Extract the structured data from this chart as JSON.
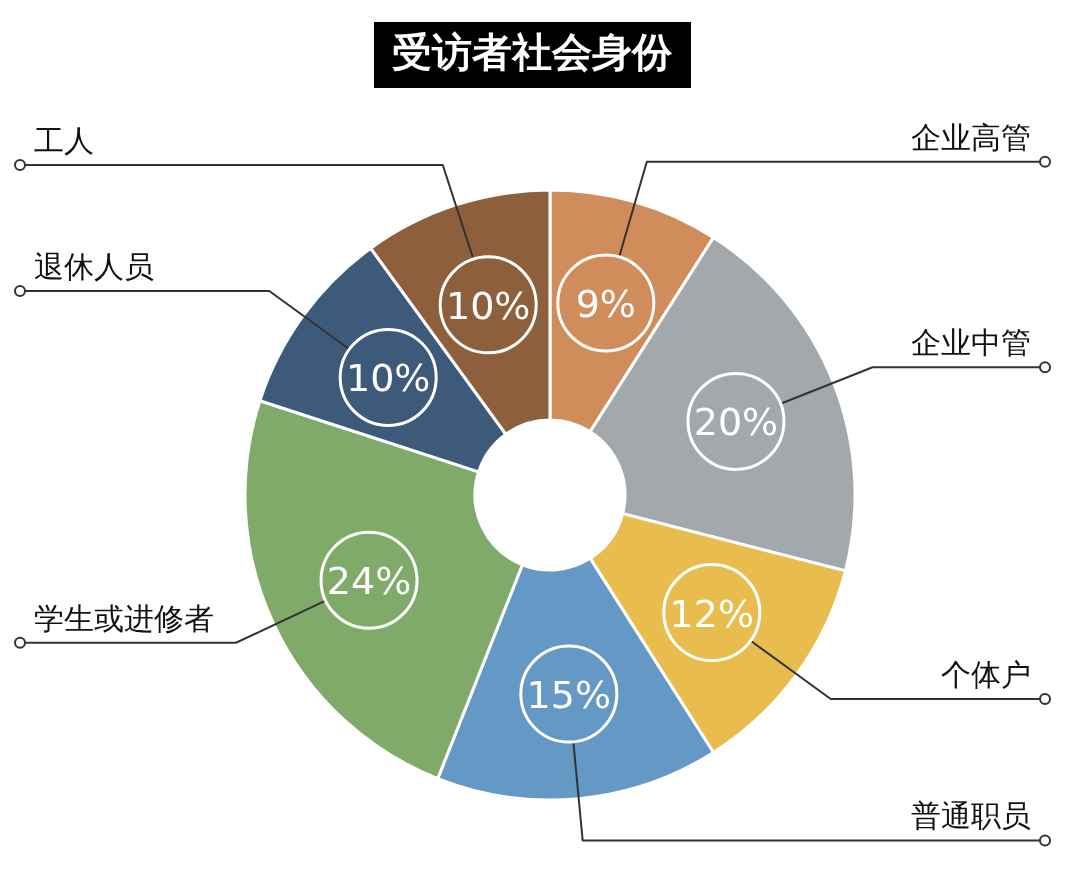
{
  "chart_data": {
    "type": "donut",
    "title": "受访者社会身份",
    "categories": [
      "企业高管",
      "企业中管",
      "个体户",
      "普通职员",
      "学生或进修者",
      "退休人员",
      "工人"
    ],
    "values": [
      9,
      20,
      12,
      15,
      24,
      10,
      10
    ],
    "value_labels": [
      "9%",
      "20%",
      "12%",
      "15%",
      "24%",
      "10%",
      "10%"
    ],
    "colors": [
      "#d08c5a",
      "#a2a8ab",
      "#e8bd4e",
      "#6499c6",
      "#80aa6a",
      "#3d5a7a",
      "#8e5f3c"
    ],
    "legend": false
  }
}
